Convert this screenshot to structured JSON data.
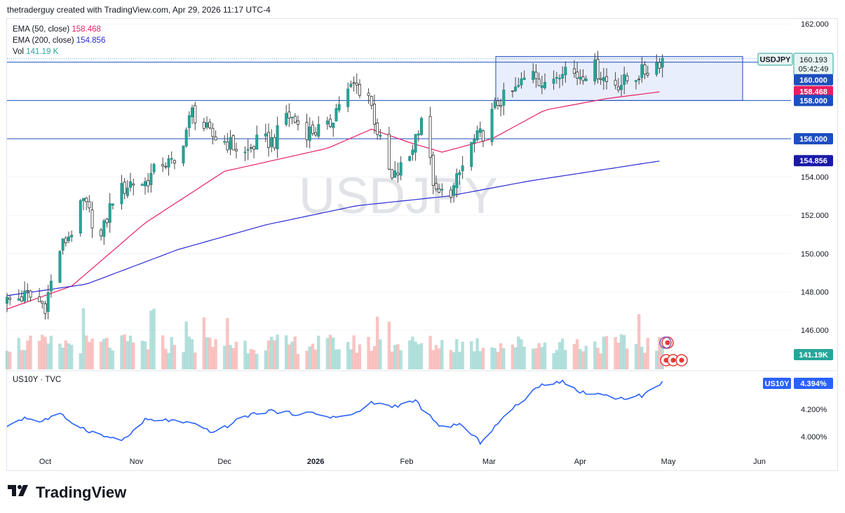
{
  "header": {
    "title": "thetraderguy created with TradingView.com, Apr 29, 2026 11:17 UTC-4"
  },
  "legend": {
    "ema50": {
      "label": "EMA (50, close)",
      "value": "158.468",
      "color": "#e91e63"
    },
    "ema200": {
      "label": "EMA (200, close)",
      "value": "154.856",
      "color": "#2a2ad4"
    },
    "vol": {
      "label": "Vol",
      "value": "141.19 K",
      "color": "#26a69a"
    }
  },
  "indicator": {
    "label": "US10Y · TVC"
  },
  "brand": {
    "name": "TradingView"
  },
  "watermark": "USDJPY",
  "price_tags": {
    "symbol": "USDJPY",
    "last": "160.193",
    "countdown": "05:42:49",
    "level_160": "160.000",
    "ema50": "158.468",
    "level_158": "158.000",
    "level_156": "156.000",
    "ema200": "154.856",
    "volume": "141.19K",
    "us10y_symbol": "US10Y",
    "us10y_value": "4.394%"
  },
  "chart_data": [
    {
      "type": "candlestick",
      "symbol": "USDJPY",
      "x_labels": [
        "Oct",
        "Nov",
        "Dec",
        "2026",
        "Feb",
        "Mar",
        "Apr",
        "May",
        "Jun"
      ],
      "y_ticks": [
        "162.000",
        "160.000",
        "158.000",
        "156.000",
        "154.000",
        "152.000",
        "150.000",
        "148.000",
        "146.000"
      ],
      "ylim": [
        144.8,
        162.5
      ],
      "horizontal_levels": [
        160.0,
        158.0,
        156.0
      ],
      "range_box": {
        "price_low": 158.0,
        "price_high": 160.3
      },
      "close_path": [
        [
          "2025-09-18",
          147.5
        ],
        [
          "2025-09-25",
          147.8
        ],
        [
          "2025-10-01",
          147.3
        ],
        [
          "2025-10-06",
          150.2
        ],
        [
          "2025-10-10",
          151.2
        ],
        [
          "2025-10-14",
          152.7
        ],
        [
          "2025-10-20",
          150.8
        ],
        [
          "2025-10-24",
          152.9
        ],
        [
          "2025-10-30",
          153.7
        ],
        [
          "2025-11-04",
          153.7
        ],
        [
          "2025-11-10",
          154.8
        ],
        [
          "2025-11-14",
          154.6
        ],
        [
          "2025-11-20",
          157.4
        ],
        [
          "2025-11-26",
          156.2
        ],
        [
          "2025-12-02",
          155.8
        ],
        [
          "2025-12-08",
          155.2
        ],
        [
          "2025-12-12",
          155.8
        ],
        [
          "2025-12-18",
          155.9
        ],
        [
          "2025-12-22",
          157.3
        ],
        [
          "2025-12-29",
          156.4
        ],
        [
          "2026-01-05",
          156.5
        ],
        [
          "2026-01-09",
          157.9
        ],
        [
          "2026-01-14",
          158.8
        ],
        [
          "2026-01-19",
          158.3
        ],
        [
          "2026-01-23",
          155.8
        ],
        [
          "2026-01-27",
          153.8
        ],
        [
          "2026-02-02",
          155.1
        ],
        [
          "2026-02-06",
          157.2
        ],
        [
          "2026-02-11",
          153.0
        ],
        [
          "2026-02-17",
          153.4
        ],
        [
          "2026-02-23",
          155.7
        ],
        [
          "2026-02-27",
          156.3
        ],
        [
          "2026-03-04",
          157.9
        ],
        [
          "2026-03-10",
          158.5
        ],
        [
          "2026-03-16",
          159.7
        ],
        [
          "2026-03-20",
          158.6
        ],
        [
          "2026-03-26",
          159.8
        ],
        [
          "2026-03-31",
          159.3
        ],
        [
          "2026-04-06",
          159.7
        ],
        [
          "2026-04-10",
          159.0
        ],
        [
          "2026-04-15",
          158.9
        ],
        [
          "2026-04-20",
          159.3
        ],
        [
          "2026-04-24",
          159.6
        ],
        [
          "2026-04-29",
          160.19
        ]
      ],
      "ema50": [
        [
          "2025-09-18",
          147.1
        ],
        [
          "2025-10-10",
          148.3
        ],
        [
          "2025-11-04",
          151.6
        ],
        [
          "2025-12-01",
          154.3
        ],
        [
          "2026-01-05",
          155.5
        ],
        [
          "2026-01-20",
          156.5
        ],
        [
          "2026-02-02",
          155.8
        ],
        [
          "2026-02-13",
          155.3
        ],
        [
          "2026-03-02",
          156.0
        ],
        [
          "2026-03-20",
          157.5
        ],
        [
          "2026-04-10",
          158.1
        ],
        [
          "2026-04-29",
          158.47
        ]
      ],
      "ema200": [
        [
          "2025-09-18",
          147.8
        ],
        [
          "2025-10-15",
          148.4
        ],
        [
          "2025-11-15",
          150.2
        ],
        [
          "2025-12-15",
          151.5
        ],
        [
          "2026-01-15",
          152.5
        ],
        [
          "2026-02-15",
          153.0
        ],
        [
          "2026-03-15",
          153.8
        ],
        [
          "2026-04-29",
          154.86
        ]
      ],
      "volume_last": "141.19K"
    },
    {
      "type": "line",
      "symbol": "US10Y",
      "y_ticks": [
        "4.200%",
        "4.000%"
      ],
      "ylim": [
        3.93,
        4.5
      ],
      "points": [
        [
          "2025-09-18",
          4.08
        ],
        [
          "2025-09-24",
          4.14
        ],
        [
          "2025-09-29",
          4.11
        ],
        [
          "2025-10-06",
          4.16
        ],
        [
          "2025-10-14",
          4.06
        ],
        [
          "2025-10-21",
          4.0
        ],
        [
          "2025-10-28",
          3.98
        ],
        [
          "2025-11-04",
          4.12
        ],
        [
          "2025-11-12",
          4.12
        ],
        [
          "2025-11-20",
          4.09
        ],
        [
          "2025-11-28",
          4.03
        ],
        [
          "2025-12-08",
          4.15
        ],
        [
          "2025-12-16",
          4.19
        ],
        [
          "2025-12-23",
          4.17
        ],
        [
          "2025-12-31",
          4.17
        ],
        [
          "2026-01-08",
          4.14
        ],
        [
          "2026-01-15",
          4.17
        ],
        [
          "2026-01-20",
          4.25
        ],
        [
          "2026-01-27",
          4.22
        ],
        [
          "2026-02-04",
          4.26
        ],
        [
          "2026-02-12",
          4.07
        ],
        [
          "2026-02-19",
          4.09
        ],
        [
          "2026-02-26",
          3.96
        ],
        [
          "2026-03-05",
          4.12
        ],
        [
          "2026-03-12",
          4.26
        ],
        [
          "2026-03-19",
          4.38
        ],
        [
          "2026-03-26",
          4.41
        ],
        [
          "2026-03-31",
          4.33
        ],
        [
          "2026-04-08",
          4.31
        ],
        [
          "2026-04-15",
          4.28
        ],
        [
          "2026-04-22",
          4.3
        ],
        [
          "2026-04-29",
          4.394
        ]
      ]
    }
  ]
}
